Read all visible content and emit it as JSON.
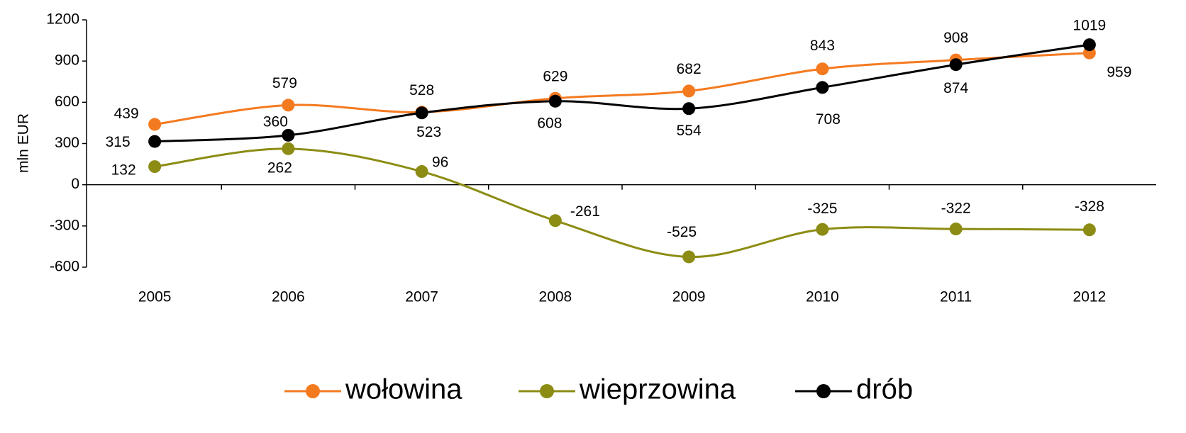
{
  "chart_data": {
    "type": "line",
    "y_label": "mln EUR",
    "categories": [
      "2005",
      "2006",
      "2007",
      "2008",
      "2009",
      "2010",
      "2011",
      "2012"
    ],
    "series": [
      {
        "name": "wołowina",
        "color": "#f47a20",
        "values": [
          439,
          579,
          528,
          629,
          682,
          843,
          908,
          959
        ]
      },
      {
        "name": "wieprzowina",
        "color": "#8c8c14",
        "values": [
          132,
          262,
          96,
          -261,
          -525,
          -325,
          -322,
          -328
        ]
      },
      {
        "name": "drób",
        "color": "#000000",
        "values": [
          315,
          360,
          523,
          608,
          554,
          708,
          874,
          1019
        ]
      }
    ],
    "ylim": [
      -600,
      1200
    ],
    "yticks": [
      -600,
      -300,
      0,
      300,
      600,
      900,
      1200
    ],
    "legend": "bottom",
    "grid": false
  }
}
